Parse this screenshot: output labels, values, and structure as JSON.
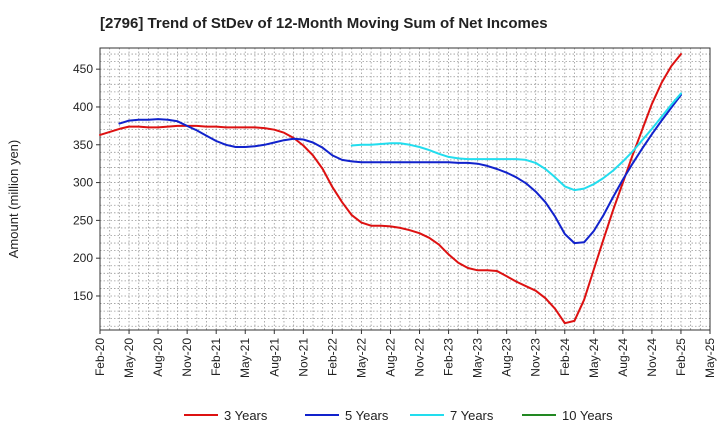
{
  "chart_data": {
    "type": "line",
    "title": "[2796]  Trend of StDev of 12-Month Moving Sum of Net Incomes",
    "xlabel": "",
    "ylabel": "Amount (million yen)",
    "ylim": [
      105,
      478
    ],
    "yticks": [
      150,
      200,
      250,
      300,
      350,
      400,
      450
    ],
    "x_tick_labels": [
      "Feb-20",
      "May-20",
      "Aug-20",
      "Nov-20",
      "Feb-21",
      "May-21",
      "Aug-21",
      "Nov-21",
      "Feb-22",
      "May-22",
      "Aug-22",
      "Nov-22",
      "Feb-23",
      "May-23",
      "Aug-23",
      "Nov-23",
      "Feb-24",
      "May-24",
      "Aug-24",
      "Nov-24",
      "Feb-25",
      "May-25"
    ],
    "x_start": "Feb-20",
    "x_end": "May-25",
    "grid": true,
    "legend_position": "bottom",
    "series": [
      {
        "name": "3 Years",
        "color": "#dd1111",
        "points": [
          [
            "Feb-20",
            363
          ],
          [
            "Mar-20",
            367
          ],
          [
            "Apr-20",
            371
          ],
          [
            "May-20",
            374
          ],
          [
            "Jun-20",
            374
          ],
          [
            "Jul-20",
            373
          ],
          [
            "Aug-20",
            373
          ],
          [
            "Sep-20",
            374
          ],
          [
            "Oct-20",
            375
          ],
          [
            "Nov-20",
            375
          ],
          [
            "Dec-20",
            375
          ],
          [
            "Jan-21",
            374
          ],
          [
            "Feb-21",
            374
          ],
          [
            "Mar-21",
            373
          ],
          [
            "Apr-21",
            373
          ],
          [
            "May-21",
            373
          ],
          [
            "Jun-21",
            373
          ],
          [
            "Jul-21",
            372
          ],
          [
            "Aug-21",
            370
          ],
          [
            "Sep-21",
            366
          ],
          [
            "Oct-21",
            359
          ],
          [
            "Nov-21",
            349
          ],
          [
            "Dec-21",
            336
          ],
          [
            "Jan-22",
            318
          ],
          [
            "Feb-22",
            294
          ],
          [
            "Mar-22",
            274
          ],
          [
            "Apr-22",
            257
          ],
          [
            "May-22",
            247
          ],
          [
            "Jun-22",
            243
          ],
          [
            "Jul-22",
            243
          ],
          [
            "Aug-22",
            242
          ],
          [
            "Sep-22",
            240
          ],
          [
            "Oct-22",
            237
          ],
          [
            "Nov-22",
            233
          ],
          [
            "Dec-22",
            227
          ],
          [
            "Jan-23",
            218
          ],
          [
            "Feb-23",
            205
          ],
          [
            "Mar-23",
            194
          ],
          [
            "Apr-23",
            187
          ],
          [
            "May-23",
            184
          ],
          [
            "Jun-23",
            184
          ],
          [
            "Jul-23",
            183
          ],
          [
            "Aug-23",
            176
          ],
          [
            "Sep-23",
            169
          ],
          [
            "Oct-23",
            163
          ],
          [
            "Nov-23",
            157
          ],
          [
            "Dec-23",
            147
          ],
          [
            "Jan-24",
            133
          ],
          [
            "Feb-24",
            114
          ],
          [
            "Mar-24",
            117
          ],
          [
            "Apr-24",
            145
          ],
          [
            "May-24",
            185
          ],
          [
            "Jun-24",
            225
          ],
          [
            "Jul-24",
            264
          ],
          [
            "Aug-24",
            300
          ],
          [
            "Sep-24",
            336
          ],
          [
            "Oct-24",
            370
          ],
          [
            "Nov-24",
            404
          ],
          [
            "Dec-24",
            432
          ],
          [
            "Jan-25",
            454
          ],
          [
            "Feb-25",
            470
          ]
        ]
      },
      {
        "name": "5 Years",
        "color": "#1122cc",
        "points": [
          [
            "Apr-20",
            378
          ],
          [
            "May-20",
            382
          ],
          [
            "Jun-20",
            383
          ],
          [
            "Jul-20",
            383
          ],
          [
            "Aug-20",
            384
          ],
          [
            "Sep-20",
            383
          ],
          [
            "Oct-20",
            381
          ],
          [
            "Nov-20",
            375
          ],
          [
            "Dec-20",
            369
          ],
          [
            "Jan-21",
            362
          ],
          [
            "Feb-21",
            355
          ],
          [
            "Mar-21",
            350
          ],
          [
            "Apr-21",
            347
          ],
          [
            "May-21",
            347
          ],
          [
            "Jun-21",
            348
          ],
          [
            "Jul-21",
            350
          ],
          [
            "Aug-21",
            353
          ],
          [
            "Sep-21",
            356
          ],
          [
            "Oct-21",
            358
          ],
          [
            "Nov-21",
            357
          ],
          [
            "Dec-21",
            353
          ],
          [
            "Jan-22",
            346
          ],
          [
            "Feb-22",
            336
          ],
          [
            "Mar-22",
            330
          ],
          [
            "Apr-22",
            328
          ],
          [
            "May-22",
            327
          ],
          [
            "Jun-22",
            327
          ],
          [
            "Jul-22",
            327
          ],
          [
            "Aug-22",
            327
          ],
          [
            "Sep-22",
            327
          ],
          [
            "Oct-22",
            327
          ],
          [
            "Nov-22",
            327
          ],
          [
            "Dec-22",
            327
          ],
          [
            "Jan-23",
            327
          ],
          [
            "Feb-23",
            327
          ],
          [
            "Mar-23",
            326
          ],
          [
            "Apr-23",
            326
          ],
          [
            "May-23",
            325
          ],
          [
            "Jun-23",
            322
          ],
          [
            "Jul-23",
            318
          ],
          [
            "Aug-23",
            313
          ],
          [
            "Sep-23",
            307
          ],
          [
            "Oct-23",
            299
          ],
          [
            "Nov-23",
            288
          ],
          [
            "Dec-23",
            274
          ],
          [
            "Jan-24",
            255
          ],
          [
            "Feb-24",
            232
          ],
          [
            "Mar-24",
            220
          ],
          [
            "Apr-24",
            221
          ],
          [
            "May-24",
            236
          ],
          [
            "Jun-24",
            257
          ],
          [
            "Jul-24",
            281
          ],
          [
            "Aug-24",
            304
          ],
          [
            "Sep-24",
            325
          ],
          [
            "Oct-24",
            345
          ],
          [
            "Nov-24",
            364
          ],
          [
            "Dec-24",
            382
          ],
          [
            "Jan-25",
            399
          ],
          [
            "Feb-25",
            416
          ]
        ]
      },
      {
        "name": "7 Years",
        "color": "#22ddee",
        "points": [
          [
            "Apr-22",
            349
          ],
          [
            "May-22",
            350
          ],
          [
            "Jun-22",
            350
          ],
          [
            "Jul-22",
            351
          ],
          [
            "Aug-22",
            352
          ],
          [
            "Sep-22",
            352
          ],
          [
            "Oct-22",
            350
          ],
          [
            "Nov-22",
            347
          ],
          [
            "Dec-22",
            343
          ],
          [
            "Jan-23",
            338
          ],
          [
            "Feb-23",
            334
          ],
          [
            "Mar-23",
            332
          ],
          [
            "Apr-23",
            331
          ],
          [
            "May-23",
            331
          ],
          [
            "Jun-23",
            331
          ],
          [
            "Jul-23",
            331
          ],
          [
            "Aug-23",
            331
          ],
          [
            "Sep-23",
            331
          ],
          [
            "Oct-23",
            330
          ],
          [
            "Nov-23",
            326
          ],
          [
            "Dec-23",
            318
          ],
          [
            "Jan-24",
            307
          ],
          [
            "Feb-24",
            295
          ],
          [
            "Mar-24",
            290
          ],
          [
            "Apr-24",
            292
          ],
          [
            "May-24",
            298
          ],
          [
            "Jun-24",
            306
          ],
          [
            "Jul-24",
            316
          ],
          [
            "Aug-24",
            328
          ],
          [
            "Sep-24",
            341
          ],
          [
            "Oct-24",
            356
          ],
          [
            "Nov-24",
            371
          ],
          [
            "Dec-24",
            387
          ],
          [
            "Jan-25",
            403
          ],
          [
            "Feb-25",
            418
          ]
        ]
      },
      {
        "name": "10 Years",
        "color": "#228822",
        "points": []
      }
    ]
  }
}
